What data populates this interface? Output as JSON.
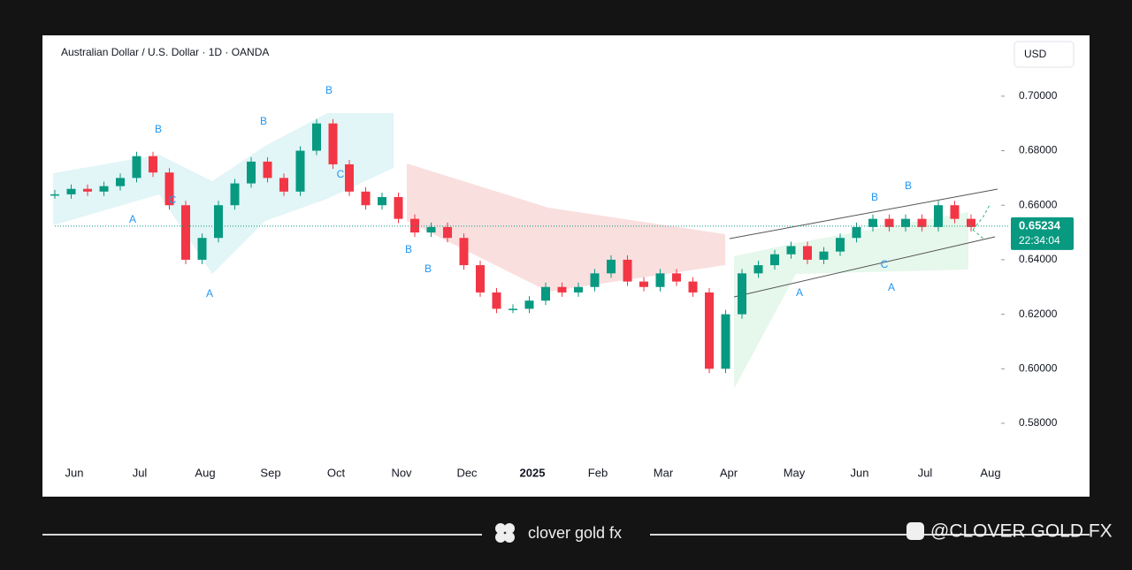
{
  "chart_data": {
    "type": "candlestick",
    "title": "Australian Dollar / U.S. Dollar · 1D · OANDA",
    "currency": "USD",
    "categories": [
      "Jun",
      null,
      null,
      null,
      "Jul",
      null,
      null,
      null,
      "Aug",
      null,
      null,
      null,
      "Sep",
      null,
      null,
      null,
      "Oct",
      null,
      null,
      null,
      "Nov",
      null,
      null,
      null,
      "Dec",
      null,
      null,
      null,
      "2025",
      null,
      null,
      null,
      "Feb",
      null,
      null,
      null,
      "Mar",
      null,
      null,
      null,
      "Apr",
      null,
      null,
      null,
      "May",
      null,
      null,
      null,
      "Jun",
      null,
      null,
      null,
      "Jul",
      null,
      null,
      null,
      "Aug"
    ],
    "values": [
      0.664,
      0.666,
      0.665,
      0.667,
      0.67,
      0.678,
      0.672,
      0.66,
      0.64,
      0.648,
      0.66,
      0.668,
      0.676,
      0.67,
      0.665,
      0.68,
      0.69,
      0.675,
      0.665,
      0.66,
      0.663,
      0.655,
      0.65,
      0.652,
      0.648,
      0.638,
      0.628,
      0.622,
      0.622,
      0.625,
      0.63,
      0.628,
      0.63,
      0.635,
      0.64,
      0.632,
      0.63,
      0.635,
      0.632,
      0.628,
      0.6,
      0.62,
      0.635,
      0.638,
      0.642,
      0.645,
      0.64,
      0.643,
      0.648,
      0.652,
      0.655,
      0.652,
      0.655,
      0.652,
      0.66,
      0.655,
      0.652
    ],
    "up_color": "#089981",
    "down_color": "#f23645",
    "ylim": [
      0.5667,
      0.7207
    ],
    "yticks": [
      {
        "value": 0.58,
        "label": "0.58000"
      },
      {
        "value": 0.6,
        "label": "0.60000"
      },
      {
        "value": 0.62,
        "label": "0.62000"
      },
      {
        "value": 0.64,
        "label": "0.64000"
      },
      {
        "value": 0.66,
        "label": "0.66000"
      },
      {
        "value": 0.68,
        "label": "0.68000"
      },
      {
        "value": 0.7,
        "label": "0.70000"
      }
    ],
    "last_price": {
      "value": 0.65234,
      "label": "0.65234"
    },
    "countdown": "22:34:04",
    "annotations": [
      "A",
      "B",
      "C",
      "B",
      "B",
      "C",
      "A",
      "B",
      "B",
      "C",
      "A",
      "B",
      "B",
      "A"
    ]
  },
  "footer": {
    "brand": "clover gold fx",
    "handle": "@CLOVER GOLD FX"
  }
}
